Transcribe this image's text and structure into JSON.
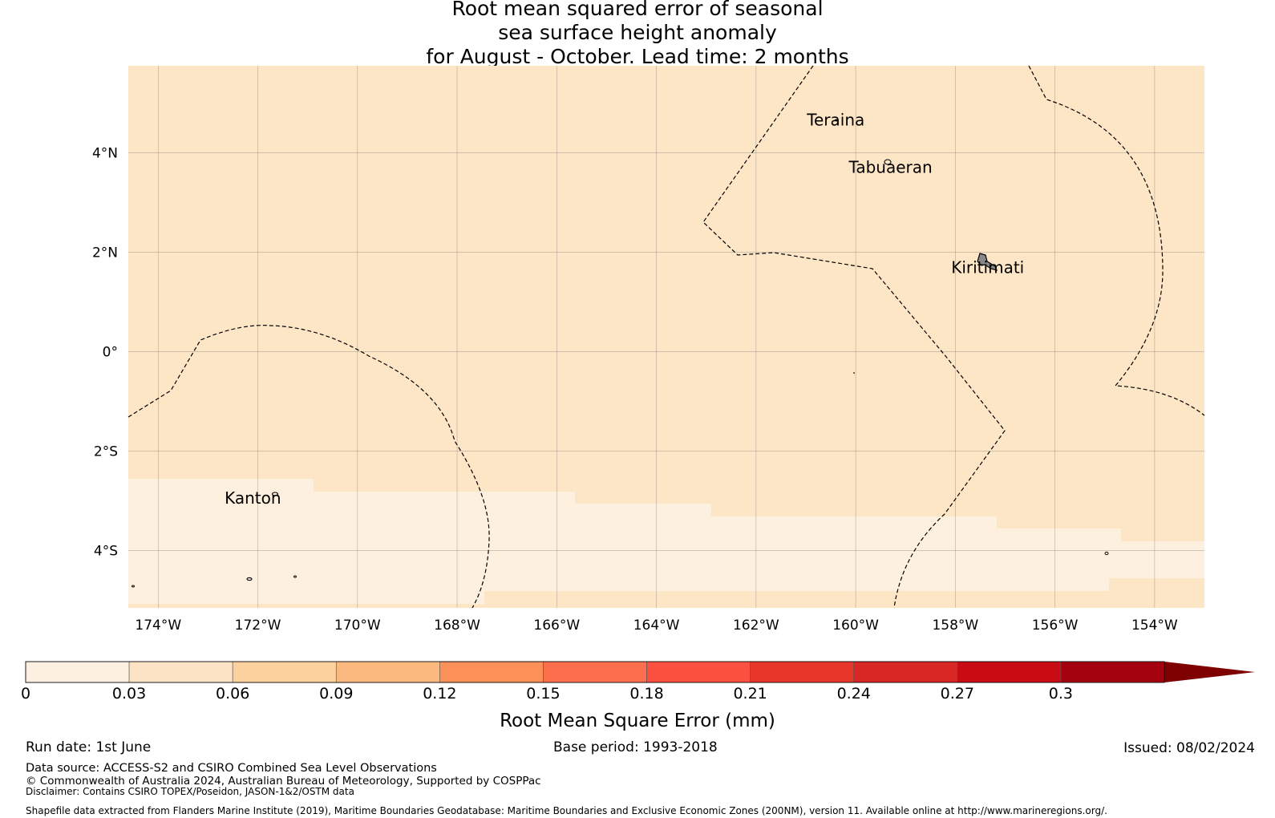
{
  "title": {
    "line1": "Root mean squared error of seasonal",
    "line2": "sea surface height anomaly",
    "line3": "for August - October. Lead time: 2 months"
  },
  "map": {
    "lon_range": [
      -174.6,
      -153.0
    ],
    "lat_range": [
      -5.15,
      5.75
    ],
    "lon_ticks": [
      {
        "value": -174,
        "label": "174°W"
      },
      {
        "value": -172,
        "label": "172°W"
      },
      {
        "value": -170,
        "label": "170°W"
      },
      {
        "value": -168,
        "label": "168°W"
      },
      {
        "value": -166,
        "label": "166°W"
      },
      {
        "value": -164,
        "label": "164°W"
      },
      {
        "value": -162,
        "label": "162°W"
      },
      {
        "value": -160,
        "label": "160°W"
      },
      {
        "value": -158,
        "label": "158°W"
      },
      {
        "value": -156,
        "label": "156°W"
      },
      {
        "value": -154,
        "label": "154°W"
      }
    ],
    "lat_ticks": [
      {
        "value": 4,
        "label": "4°N"
      },
      {
        "value": 2,
        "label": "2°N"
      },
      {
        "value": 0,
        "label": "0°"
      },
      {
        "value": -2,
        "label": "2°S"
      },
      {
        "value": -4,
        "label": "4°S"
      }
    ],
    "places": [
      {
        "name": "Teraina",
        "lon": -160.4,
        "lat": 4.55
      },
      {
        "name": "Tabuaeran",
        "lon": -159.3,
        "lat": 3.6
      },
      {
        "name": "Kiritimati",
        "lon": -157.35,
        "lat": 1.58
      },
      {
        "name": "Kanton",
        "lon": -172.1,
        "lat": -3.05
      }
    ],
    "background_class_color": "#fde6c6",
    "low_class_color": "#fdf0de",
    "gridline_color": "#777777"
  },
  "colorbar": {
    "boundaries": [
      "0",
      "0.03",
      "0.06",
      "0.09",
      "0.12",
      "0.15",
      "0.18",
      "0.21",
      "0.24",
      "0.27",
      "0.3"
    ],
    "colors": [
      "#fef0e0",
      "#fde3c5",
      "#fdd19e",
      "#fcb97f",
      "#fc9059",
      "#fc6f4c",
      "#fc5040",
      "#e8372a",
      "#d82724",
      "#c90b14",
      "#a50210"
    ],
    "extend_color": "#7f0000",
    "label": "Root Mean Square Error (mm)"
  },
  "footer": {
    "run_date": "Run date: 1st June",
    "base_period": "Base period: 1993-2018",
    "issued": "Issued: 08/02/2024",
    "data_source": "Data source: ACCESS-S2 and CSIRO Combined Sea Level Observations",
    "copyright": "© Commonwealth of Australia 2024, Australian Bureau of Meteorology, Supported by COSPPac",
    "disclaimer": "Disclaimer: Contains CSIRO TOPEX/Poseidon, JASON-1&2/OSTM data",
    "shapefile": "Shapefile data extracted from Flanders Marine Institute (2019), Maritime Boundaries Geodatabase: Maritime Boundaries and Exclusive Economic Zones (200NM), version 11. Available online at http://www.marineregions.org/."
  }
}
